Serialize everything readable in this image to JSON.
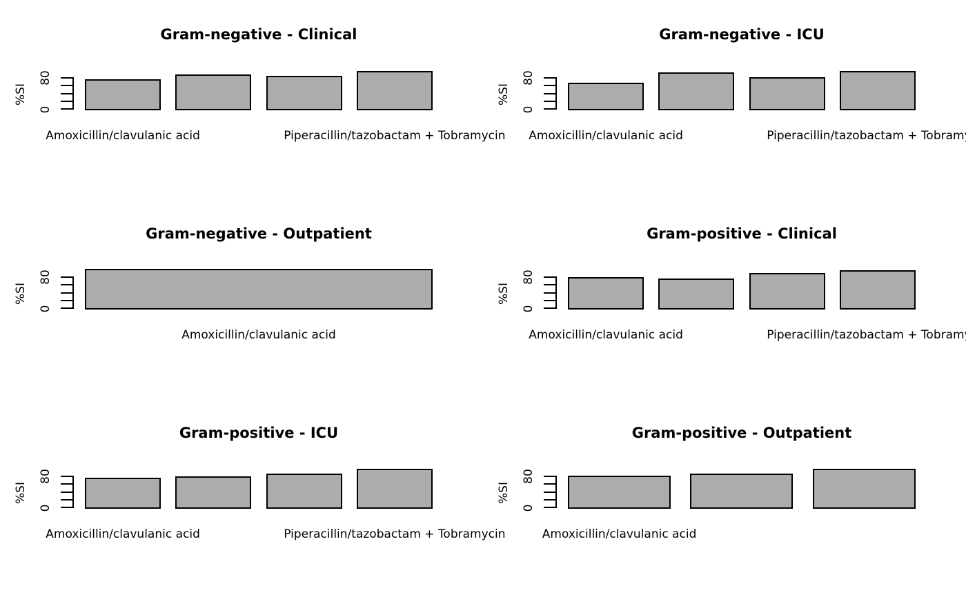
{
  "figure": {
    "background": "#ffffff",
    "bar_fill": "#acacac",
    "bar_stroke": "#000000",
    "y_axis": {
      "label": "%SI",
      "tick_labels_shown": [
        "0",
        "80"
      ],
      "ticks_at": [
        0,
        20,
        40,
        60,
        80
      ]
    }
  },
  "chart_data": [
    {
      "type": "bar",
      "title": "Gram-negative - Clinical",
      "ylabel": "%SI",
      "ylim": [
        0,
        100
      ],
      "grid": false,
      "values": [
        76,
        88,
        85,
        96
      ],
      "bar_labels": [
        "Amoxicillin/clavulanic acid",
        null,
        null,
        "Piperacillin/tazobactam + Tobramycin"
      ]
    },
    {
      "type": "bar",
      "title": "Gram-negative - ICU",
      "ylabel": "%SI",
      "ylim": [
        0,
        100
      ],
      "grid": false,
      "values": [
        68,
        94,
        82,
        97
      ],
      "bar_labels": [
        "Amoxicillin/clavulanic acid",
        null,
        null,
        "Piperacillin/tazobactam + Tobramycin"
      ]
    },
    {
      "type": "bar",
      "title": "Gram-negative - Outpatient",
      "ylabel": "%SI",
      "ylim": [
        0,
        100
      ],
      "grid": false,
      "values": [
        100
      ],
      "bar_labels": [
        "Amoxicillin/clavulanic acid"
      ]
    },
    {
      "type": "bar",
      "title": "Gram-positive - Clinical",
      "ylabel": "%SI",
      "ylim": [
        0,
        100
      ],
      "grid": false,
      "values": [
        79,
        77,
        90,
        96
      ],
      "bar_labels": [
        "Amoxicillin/clavulanic acid",
        null,
        null,
        "Piperacillin/tazobactam + Tobramycin"
      ]
    },
    {
      "type": "bar",
      "title": "Gram-positive - ICU",
      "ylabel": "%SI",
      "ylim": [
        0,
        100
      ],
      "grid": false,
      "values": [
        76,
        80,
        87,
        99
      ],
      "bar_labels": [
        "Amoxicillin/clavulanic acid",
        null,
        null,
        "Piperacillin/tazobactam + Tobramycin"
      ]
    },
    {
      "type": "bar",
      "title": "Gram-positive - Outpatient",
      "ylabel": "%SI",
      "ylim": [
        0,
        100
      ],
      "grid": false,
      "values": [
        81,
        87,
        99
      ],
      "bar_labels": [
        "Amoxicillin/clavulanic acid",
        null,
        null
      ]
    }
  ]
}
